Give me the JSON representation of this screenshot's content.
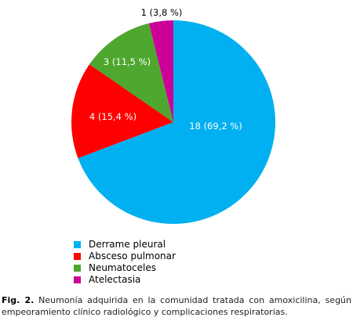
{
  "chart_data": {
    "type": "pie",
    "categories": [
      "Derrame pleural",
      "Absceso pulmonar",
      "Neumatoceles",
      "Atelectasia"
    ],
    "values": [
      18,
      4,
      3,
      1
    ],
    "percents": [
      69.2,
      15.4,
      11.5,
      3.8
    ],
    "slice_labels": [
      "18 (69,2 %)",
      "4 (15,4 %)",
      "3 (11,5 %)",
      "1 (3,8 %)"
    ],
    "colors": [
      "#00b0f0",
      "#ff0000",
      "#4ea72e",
      "#cc0099"
    ],
    "start_angle": "12 o'clock",
    "direction": "clockwise",
    "legend_position": "bottom-left"
  },
  "legend": {
    "items": [
      {
        "label": "Derrame pleural",
        "color": "#00b0f0"
      },
      {
        "label": "Absceso pulmonar",
        "color": "#ff0000"
      },
      {
        "label": "Neumatoceles",
        "color": "#4ea72e"
      },
      {
        "label": "Atelectasia",
        "color": "#cc0099"
      }
    ]
  },
  "caption": {
    "prefix": "Fig. 2.",
    "text": " Neumonía adquirida en la comunidad tratada con amoxicilina, según empeoramiento clínico radiológico y complicaciones respiratorias."
  }
}
